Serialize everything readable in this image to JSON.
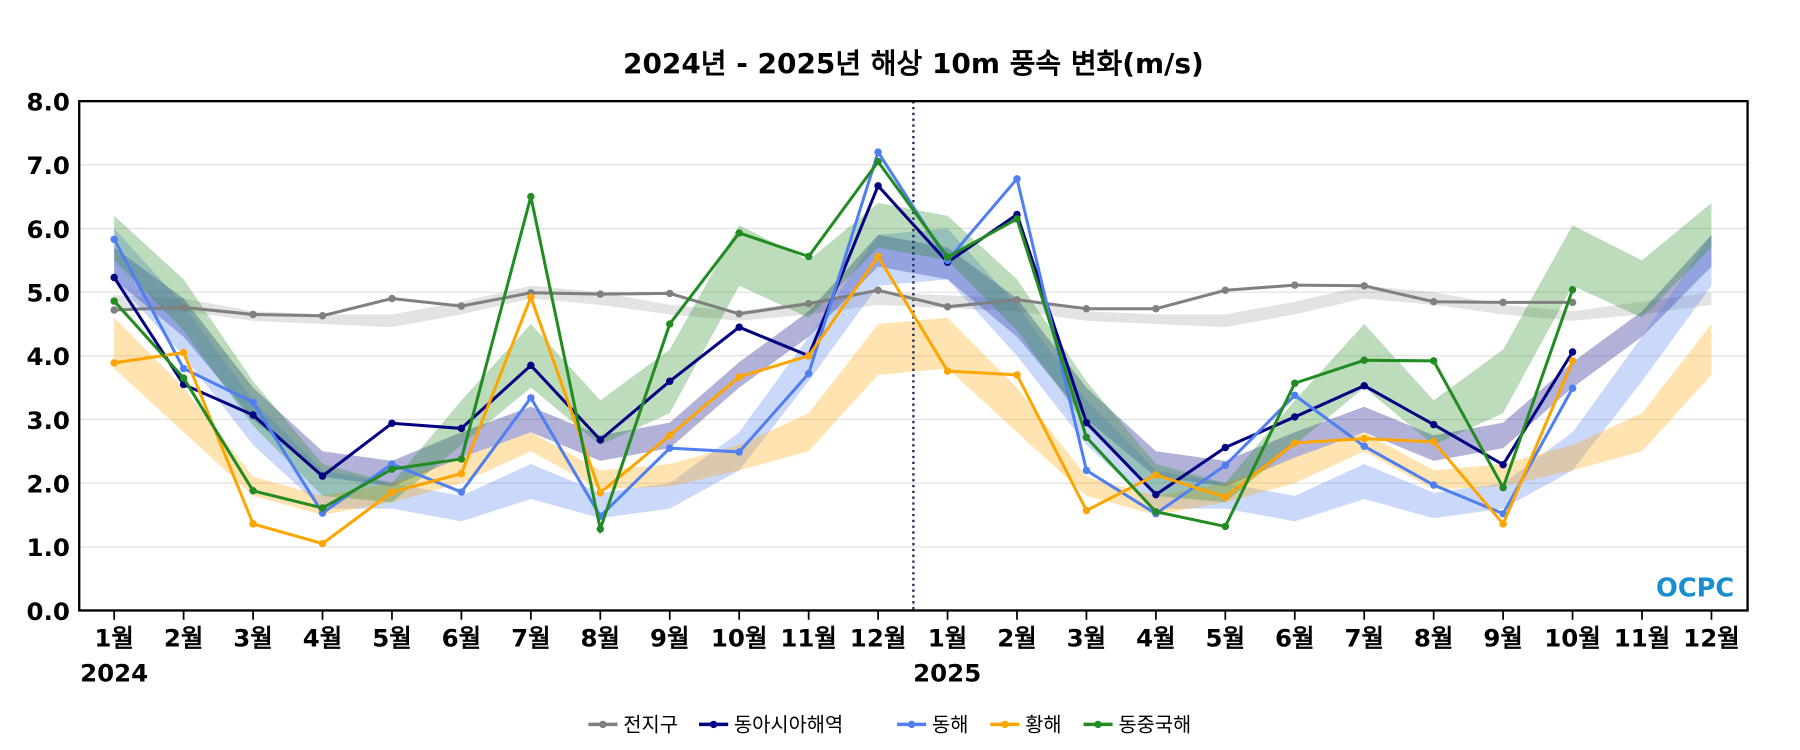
{
  "chart_data": {
    "type": "line",
    "title": "2024년 - 2025년 해상 10m 풍속 변화(m/s)",
    "xlabel": "",
    "ylabel": "",
    "ylim": [
      0,
      8
    ],
    "yticks": [
      "0.0",
      "1.0",
      "2.0",
      "3.0",
      "4.0",
      "5.0",
      "6.0",
      "7.0",
      "8.0"
    ],
    "grid": true,
    "legend_position": "bottom",
    "x_tick_labels": [
      "1월",
      "2월",
      "3월",
      "4월",
      "5월",
      "6월",
      "7월",
      "8월",
      "9월",
      "10월",
      "11월",
      "12월",
      "1월",
      "2월",
      "3월",
      "4월",
      "5월",
      "6월",
      "7월",
      "8월",
      "9월",
      "10월",
      "11월",
      "12월"
    ],
    "year_labels": [
      "2024",
      "2025"
    ],
    "watermark": "OCPC",
    "series": [
      {
        "name": "전지구",
        "color": "#808080",
        "values": [
          4.72,
          4.76,
          4.65,
          4.63,
          4.9,
          4.78,
          4.99,
          4.97,
          4.98,
          4.66,
          4.82,
          5.03,
          4.77,
          4.88,
          4.74,
          4.74,
          5.03,
          5.11,
          5.1,
          4.85,
          4.84,
          4.84
        ],
        "band_low": [
          4.75,
          4.7,
          4.55,
          4.5,
          4.45,
          4.65,
          4.9,
          4.8,
          4.65,
          4.55,
          4.65,
          4.8
        ],
        "band_high": [
          4.95,
          4.9,
          4.7,
          4.65,
          4.65,
          4.85,
          5.1,
          5.0,
          4.8,
          4.7,
          4.85,
          5.0
        ]
      },
      {
        "name": "동아시아해역",
        "color": "#000080",
        "values": [
          5.23,
          3.55,
          3.07,
          2.11,
          2.94,
          2.86,
          3.85,
          2.68,
          3.6,
          4.45,
          4.0,
          6.67,
          5.47,
          6.22,
          2.95,
          1.82,
          2.56,
          3.04,
          3.53,
          2.92,
          2.29,
          4.06
        ],
        "band_low": [
          5.2,
          4.3,
          3.0,
          2.1,
          1.95,
          2.4,
          2.8,
          2.35,
          2.55,
          3.5,
          4.3,
          5.4
        ],
        "band_high": [
          5.7,
          4.9,
          3.5,
          2.5,
          2.35,
          2.8,
          3.2,
          2.75,
          2.95,
          3.9,
          4.7,
          5.9
        ]
      },
      {
        "name": "동해",
        "color": "#4f7ff0",
        "values": [
          5.83,
          3.8,
          3.27,
          1.53,
          2.3,
          1.86,
          3.34,
          1.48,
          2.55,
          2.49,
          3.72,
          7.2,
          5.5,
          6.78,
          2.2,
          1.52,
          2.28,
          3.38,
          2.58,
          1.97,
          1.52,
          3.49
        ],
        "band_low": [
          5.2,
          4.0,
          2.6,
          1.6,
          1.6,
          1.4,
          1.75,
          1.45,
          1.6,
          2.2,
          3.6,
          5.1
        ],
        "band_high": [
          6.0,
          4.8,
          3.3,
          2.2,
          2.0,
          1.8,
          2.3,
          1.85,
          2.0,
          2.8,
          4.3,
          5.9
        ]
      },
      {
        "name": "황해",
        "color": "#ffa500",
        "values": [
          3.89,
          4.05,
          1.36,
          1.05,
          1.86,
          2.15,
          4.92,
          1.85,
          2.75,
          3.67,
          4.0,
          5.56,
          3.76,
          3.7,
          1.57,
          2.13,
          1.78,
          2.63,
          2.7,
          2.65,
          1.36,
          3.92
        ],
        "band_low": [
          3.8,
          2.8,
          1.8,
          1.5,
          1.7,
          2.0,
          2.5,
          1.9,
          1.95,
          2.2,
          2.5,
          3.7
        ],
        "band_high": [
          4.6,
          3.5,
          2.1,
          1.8,
          2.0,
          2.4,
          2.8,
          2.2,
          2.3,
          2.6,
          3.1,
          4.5
        ]
      },
      {
        "name": "동중국해",
        "color": "#228b22",
        "values": [
          4.86,
          3.65,
          1.88,
          1.61,
          2.22,
          2.38,
          6.5,
          1.28,
          4.5,
          5.93,
          5.56,
          7.05,
          5.55,
          6.15,
          2.72,
          1.55,
          1.32,
          3.57,
          3.93,
          3.92,
          1.93,
          5.04
        ],
        "band_low": [
          5.5,
          4.4,
          2.9,
          1.8,
          1.7,
          2.6,
          3.5,
          2.6,
          3.1,
          5.1,
          4.6,
          5.7
        ],
        "band_high": [
          6.2,
          5.2,
          3.6,
          2.3,
          2.0,
          3.3,
          4.5,
          3.3,
          4.1,
          6.05,
          5.5,
          6.4
        ]
      }
    ]
  }
}
